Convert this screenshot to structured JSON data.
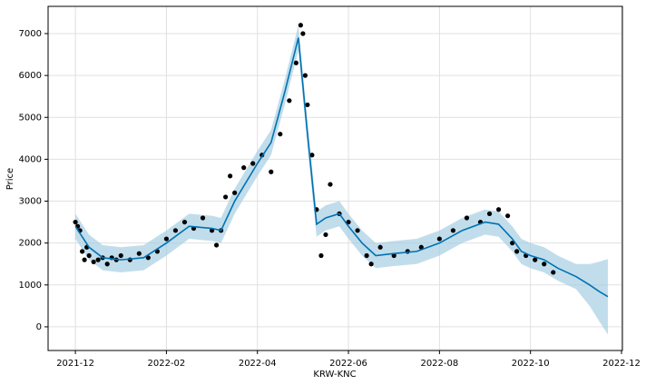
{
  "chart_data": {
    "type": "forecast",
    "x_label": "KRW-KNC",
    "y_label": "Price",
    "xlim": [
      -0.6,
      12.02
    ],
    "ylim": [
      -565,
      7650
    ],
    "xticks": [
      {
        "value": 0,
        "label": "2021-12"
      },
      {
        "value": 2,
        "label": "2022-02"
      },
      {
        "value": 4,
        "label": "2022-04"
      },
      {
        "value": 6,
        "label": "2022-06"
      },
      {
        "value": 8,
        "label": "2022-08"
      },
      {
        "value": 10,
        "label": "2022-10"
      },
      {
        "value": 12,
        "label": "2022-12"
      }
    ],
    "yticks": [
      0,
      1000,
      2000,
      3000,
      4000,
      5000,
      6000,
      7000
    ],
    "grid": true,
    "observed": {
      "color": "#000000",
      "x": [
        0,
        0.05,
        0.1,
        0.15,
        0.2,
        0.25,
        0.3,
        0.4,
        0.5,
        0.6,
        0.7,
        0.8,
        0.9,
        1.0,
        1.2,
        1.4,
        1.6,
        1.8,
        2.0,
        2.2,
        2.4,
        2.6,
        2.8,
        3.0,
        3.1,
        3.2,
        3.3,
        3.4,
        3.5,
        3.7,
        3.9,
        4.1,
        4.3,
        4.5,
        4.7,
        4.85,
        4.95,
        5.0,
        5.05,
        5.1,
        5.2,
        5.3,
        5.4,
        5.5,
        5.6,
        5.8,
        6.0,
        6.2,
        6.4,
        6.5,
        6.7,
        7.0,
        7.3,
        7.6,
        8.0,
        8.3,
        8.6,
        8.9,
        9.1,
        9.3,
        9.5,
        9.6,
        9.7,
        9.9,
        10.1,
        10.3,
        10.5
      ],
      "values": [
        2500,
        2400,
        2300,
        1800,
        1600,
        1900,
        1700,
        1550,
        1600,
        1650,
        1500,
        1650,
        1600,
        1700,
        1600,
        1750,
        1650,
        1800,
        2100,
        2300,
        2500,
        2350,
        2600,
        2300,
        1950,
        2300,
        3100,
        3600,
        3200,
        3800,
        3900,
        4100,
        3700,
        4600,
        5400,
        6300,
        7200,
        7000,
        6000,
        5300,
        4100,
        2800,
        1700,
        2200,
        3400,
        2700,
        2500,
        2300,
        1700,
        1500,
        1900,
        1700,
        1800,
        1900,
        2100,
        2300,
        2600,
        2500,
        2700,
        2800,
        2650,
        2000,
        1800,
        1700,
        1600,
        1500,
        1300
      ]
    },
    "forecast": {
      "color": "#0072b2",
      "band_color": "#a6cee3",
      "x": [
        0,
        0.3,
        0.6,
        1.0,
        1.5,
        2.0,
        2.5,
        3.0,
        3.2,
        3.5,
        4.0,
        4.3,
        4.6,
        4.9,
        5.1,
        5.3,
        5.5,
        5.8,
        6.0,
        6.3,
        6.6,
        7.0,
        7.5,
        8.0,
        8.5,
        9.0,
        9.3,
        9.6,
        9.8,
        10.0,
        10.3,
        10.6,
        11.0,
        11.3,
        11.5,
        11.7
      ],
      "values": [
        2400,
        1900,
        1650,
        1600,
        1650,
        2000,
        2400,
        2350,
        2300,
        3000,
        3900,
        4400,
        5600,
        6900,
        4600,
        2450,
        2600,
        2700,
        2400,
        2000,
        1700,
        1750,
        1800,
        2000,
        2300,
        2500,
        2450,
        2100,
        1800,
        1700,
        1600,
        1400,
        1200,
        1000,
        850,
        720
      ],
      "lower": [
        2100,
        1600,
        1350,
        1300,
        1350,
        1700,
        2100,
        2050,
        2000,
        2700,
        3600,
        4100,
        5300,
        6600,
        4300,
        2150,
        2300,
        2400,
        2100,
        1700,
        1400,
        1450,
        1500,
        1700,
        2000,
        2200,
        2150,
        1800,
        1500,
        1400,
        1300,
        1100,
        900,
        500,
        150,
        -180
      ],
      "upper": [
        2700,
        2200,
        1950,
        1900,
        1950,
        2300,
        2700,
        2650,
        2600,
        3300,
        4200,
        4700,
        5900,
        7200,
        4900,
        2750,
        2900,
        3000,
        2700,
        2300,
        2000,
        2050,
        2100,
        2300,
        2600,
        2800,
        2750,
        2400,
        2100,
        2000,
        1900,
        1700,
        1500,
        1500,
        1550,
        1620
      ]
    }
  }
}
